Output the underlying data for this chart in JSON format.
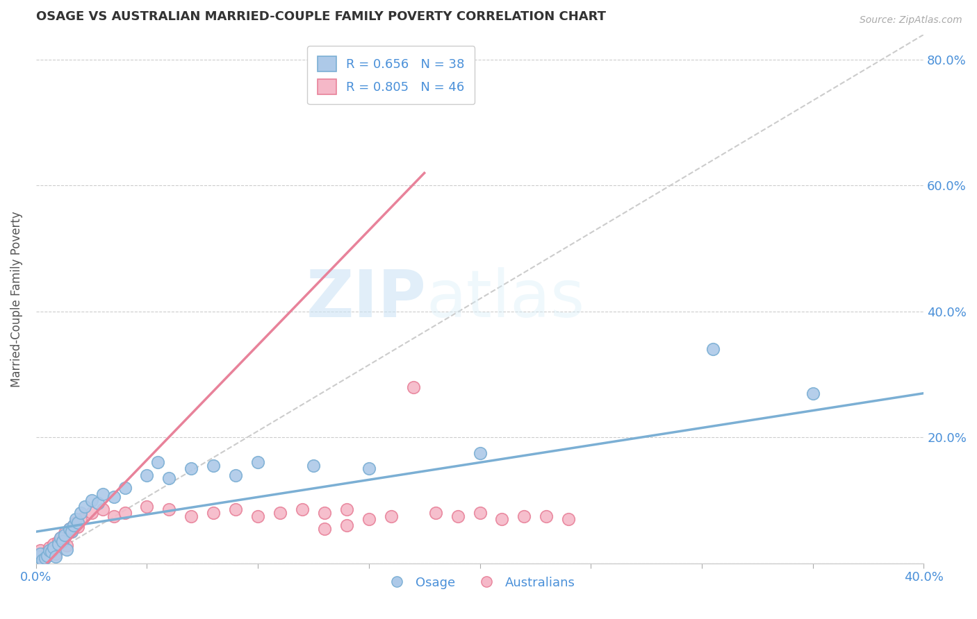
{
  "title": "OSAGE VS AUSTRALIAN MARRIED-COUPLE FAMILY POVERTY CORRELATION CHART",
  "source": "Source: ZipAtlas.com",
  "ylabel": "Married-Couple Family Poverty",
  "xlabel": "",
  "xlim": [
    0.0,
    0.4
  ],
  "ylim": [
    0.0,
    0.84
  ],
  "xticks": [
    0.0,
    0.05,
    0.1,
    0.15,
    0.2,
    0.25,
    0.3,
    0.35,
    0.4
  ],
  "yticks": [
    0.0,
    0.2,
    0.4,
    0.6,
    0.8
  ],
  "ytick_labels": [
    "",
    "20.0%",
    "40.0%",
    "60.0%",
    "80.0%"
  ],
  "xtick_labels": [
    "0.0%",
    "",
    "",
    "",
    "",
    "",
    "",
    "",
    "40.0%"
  ],
  "grid_color": "#cccccc",
  "background_color": "#ffffff",
  "watermark_zip": "ZIP",
  "watermark_atlas": "atlas",
  "legend_R1": "R = 0.656",
  "legend_N1": "N = 38",
  "legend_R2": "R = 0.805",
  "legend_N2": "N = 46",
  "osage_color": "#7bafd4",
  "osage_fill": "#adc9e8",
  "australians_color": "#e8829a",
  "australians_fill": "#f5b8c8",
  "osage_points_x": [
    0.001,
    0.002,
    0.003,
    0.004,
    0.005,
    0.006,
    0.007,
    0.008,
    0.009,
    0.01,
    0.011,
    0.012,
    0.013,
    0.014,
    0.015,
    0.016,
    0.017,
    0.018,
    0.019,
    0.02,
    0.022,
    0.025,
    0.028,
    0.03,
    0.035,
    0.04,
    0.05,
    0.055,
    0.06,
    0.07,
    0.08,
    0.09,
    0.1,
    0.125,
    0.15,
    0.2,
    0.305,
    0.35
  ],
  "osage_points_y": [
    0.01,
    0.015,
    0.005,
    0.008,
    0.012,
    0.02,
    0.018,
    0.025,
    0.01,
    0.03,
    0.04,
    0.035,
    0.045,
    0.022,
    0.055,
    0.05,
    0.06,
    0.07,
    0.065,
    0.08,
    0.09,
    0.1,
    0.095,
    0.11,
    0.105,
    0.12,
    0.14,
    0.16,
    0.135,
    0.15,
    0.155,
    0.14,
    0.16,
    0.155,
    0.15,
    0.175,
    0.34,
    0.27
  ],
  "aus_points_x": [
    0.001,
    0.002,
    0.003,
    0.004,
    0.005,
    0.006,
    0.007,
    0.008,
    0.009,
    0.01,
    0.011,
    0.012,
    0.013,
    0.014,
    0.015,
    0.016,
    0.017,
    0.018,
    0.019,
    0.02,
    0.025,
    0.03,
    0.035,
    0.04,
    0.05,
    0.06,
    0.07,
    0.08,
    0.09,
    0.1,
    0.11,
    0.12,
    0.13,
    0.14,
    0.15,
    0.16,
    0.17,
    0.18,
    0.19,
    0.2,
    0.21,
    0.22,
    0.23,
    0.24,
    0.13,
    0.14
  ],
  "aus_points_y": [
    0.015,
    0.02,
    0.008,
    0.012,
    0.018,
    0.025,
    0.022,
    0.03,
    0.015,
    0.035,
    0.04,
    0.038,
    0.048,
    0.028,
    0.055,
    0.05,
    0.06,
    0.065,
    0.058,
    0.07,
    0.08,
    0.085,
    0.075,
    0.08,
    0.09,
    0.085,
    0.075,
    0.08,
    0.085,
    0.075,
    0.08,
    0.085,
    0.08,
    0.085,
    0.07,
    0.075,
    0.28,
    0.08,
    0.075,
    0.08,
    0.07,
    0.075,
    0.075,
    0.07,
    0.055,
    0.06
  ],
  "osage_trendline_x": [
    0.0,
    0.4
  ],
  "osage_trendline_y": [
    0.05,
    0.27
  ],
  "aus_trendline_x": [
    0.005,
    0.175
  ],
  "aus_trendline_y": [
    0.0,
    0.62
  ],
  "ref_line_x": [
    0.0,
    0.4
  ],
  "ref_line_y": [
    0.0,
    0.84
  ]
}
